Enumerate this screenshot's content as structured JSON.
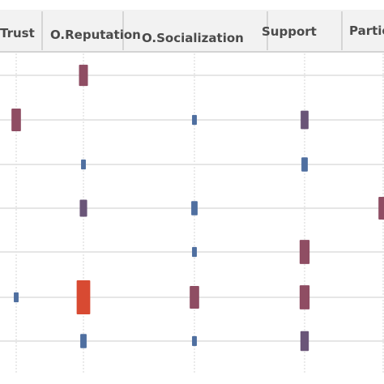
{
  "chart_data": {
    "type": "heatmap",
    "title": "",
    "xlabel": "",
    "ylabel": "",
    "columns": [
      "Trust",
      "O.Reputation",
      "O.Socialization",
      "Support",
      "Partic"
    ],
    "rows": 7,
    "grid": true,
    "marks": [
      {
        "col": 1,
        "row": 0,
        "value": 0.55,
        "color": "#8f4d63"
      },
      {
        "col": 0,
        "row": 1,
        "value": 0.6,
        "color": "#8f4d63"
      },
      {
        "col": 2,
        "row": 1,
        "value": 0.15,
        "color": "#4f6fa0"
      },
      {
        "col": 3,
        "row": 1,
        "value": 0.45,
        "color": "#6a5578"
      },
      {
        "col": 1,
        "row": 2,
        "value": 0.15,
        "color": "#4f6fa0"
      },
      {
        "col": 3,
        "row": 2,
        "value": 0.3,
        "color": "#4f6fa0"
      },
      {
        "col": 1,
        "row": 3,
        "value": 0.4,
        "color": "#6a5578"
      },
      {
        "col": 2,
        "row": 3,
        "value": 0.3,
        "color": "#4f6fa0"
      },
      {
        "col": 4,
        "row": 3,
        "value": 0.6,
        "color": "#8f4d63"
      },
      {
        "col": 2,
        "row": 4,
        "value": 0.15,
        "color": "#4f6fa0"
      },
      {
        "col": 3,
        "row": 4,
        "value": 0.65,
        "color": "#8f4d63"
      },
      {
        "col": 0,
        "row": 5,
        "value": 0.15,
        "color": "#4f6fa0"
      },
      {
        "col": 1,
        "row": 5,
        "value": 1.0,
        "color": "#d84a32"
      },
      {
        "col": 2,
        "row": 5,
        "value": 0.6,
        "color": "#8f4d63"
      },
      {
        "col": 3,
        "row": 5,
        "value": 0.65,
        "color": "#8f4d63"
      },
      {
        "col": 1,
        "row": 6,
        "value": 0.3,
        "color": "#4f6fa0"
      },
      {
        "col": 2,
        "row": 6,
        "value": 0.15,
        "color": "#4f6fa0"
      },
      {
        "col": 3,
        "row": 6,
        "value": 0.5,
        "color": "#6a5578"
      }
    ]
  }
}
